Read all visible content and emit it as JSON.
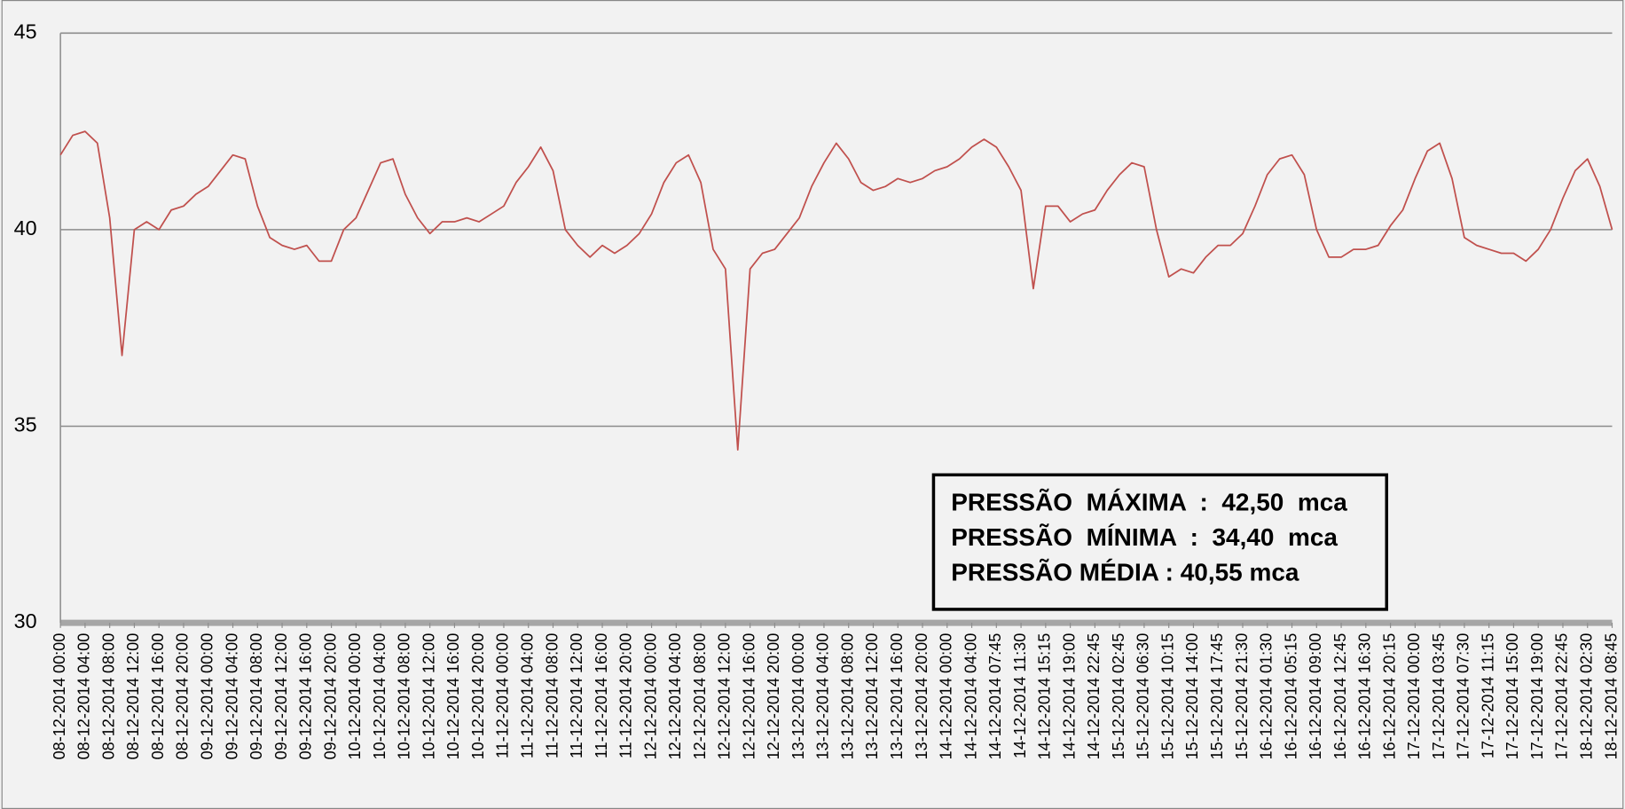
{
  "chart_data": {
    "type": "line",
    "categories": [
      "08-12-2014 00:00",
      null,
      "08-12-2014 04:00",
      null,
      "08-12-2014 08:00",
      null,
      "08-12-2014 12:00",
      null,
      "08-12-2014 16:00",
      null,
      "08-12-2014 20:00",
      null,
      "09-12-2014 00:00",
      null,
      "09-12-2014 04:00",
      null,
      "09-12-2014 08:00",
      null,
      "09-12-2014 12:00",
      null,
      "09-12-2014 16:00",
      null,
      "09-12-2014 20:00",
      null,
      "10-12-2014 00:00",
      null,
      "10-12-2014 04:00",
      null,
      "10-12-2014 08:00",
      null,
      "10-12-2014 12:00",
      null,
      "10-12-2014 16:00",
      null,
      "10-12-2014 20:00",
      null,
      "11-12-2014 00:00",
      null,
      "11-12-2014 04:00",
      null,
      "11-12-2014 08:00",
      null,
      "11-12-2014 12:00",
      null,
      "11-12-2014 16:00",
      null,
      "11-12-2014 20:00",
      null,
      "12-12-2014 00:00",
      null,
      "12-12-2014 04:00",
      null,
      "12-12-2014 08:00",
      null,
      "12-12-2014 12:00",
      null,
      "12-12-2014 16:00",
      null,
      "12-12-2014 20:00",
      null,
      "13-12-2014 00:00",
      null,
      "13-12-2014 04:00",
      null,
      "13-12-2014 08:00",
      null,
      "13-12-2014 12:00",
      null,
      "13-12-2014 16:00",
      null,
      "13-12-2014 20:00",
      null,
      "14-12-2014 00:00",
      null,
      "14-12-2014 04:00",
      null,
      "14-12-2014 07:45",
      null,
      "14-12-2014 11:30",
      null,
      "14-12-2014 15:15",
      null,
      "14-12-2014 19:00",
      null,
      "14-12-2014 22:45",
      null,
      "15-12-2014 02:45",
      null,
      "15-12-2014 06:30",
      null,
      "15-12-2014 10:15",
      null,
      "15-12-2014 14:00",
      null,
      "15-12-2014 17:45",
      null,
      "15-12-2014 21:30",
      null,
      "16-12-2014 01:30",
      null,
      "16-12-2014 05:15",
      null,
      "16-12-2014 09:00",
      null,
      "16-12-2014 12:45",
      null,
      "16-12-2014 16:30",
      null,
      "16-12-2014 20:15",
      null,
      "17-12-2014 00:00",
      null,
      "17-12-2014 03:45",
      null,
      "17-12-2014 07:30",
      null,
      "17-12-2014 11:15",
      null,
      "17-12-2014 15:00",
      null,
      "17-12-2014 19:00",
      null,
      "17-12-2014 22:45",
      null,
      "18-12-2014 02:30",
      null,
      "18-12-2014 08:45"
    ],
    "series": [
      {
        "color": "#c0504d",
        "values": [
          41.9,
          42.4,
          42.5,
          42.2,
          40.3,
          36.8,
          40.0,
          40.2,
          40.0,
          40.5,
          40.6,
          40.9,
          41.1,
          41.5,
          41.9,
          41.8,
          40.6,
          39.8,
          39.6,
          39.5,
          39.6,
          39.2,
          39.2,
          40.0,
          40.3,
          41.0,
          41.7,
          41.8,
          40.9,
          40.3,
          39.9,
          40.2,
          40.2,
          40.3,
          40.2,
          40.4,
          40.6,
          41.2,
          41.6,
          42.1,
          41.5,
          40.0,
          39.6,
          39.3,
          39.6,
          39.4,
          39.6,
          39.9,
          40.4,
          41.2,
          41.7,
          41.9,
          41.2,
          39.5,
          39.0,
          34.4,
          39.0,
          39.4,
          39.5,
          39.9,
          40.3,
          41.1,
          41.7,
          42.2,
          41.8,
          41.2,
          41.0,
          41.1,
          41.3,
          41.2,
          41.3,
          41.5,
          41.6,
          41.8,
          42.1,
          42.3,
          42.1,
          41.6,
          41.0,
          38.5,
          40.6,
          40.6,
          40.2,
          40.4,
          40.5,
          41.0,
          41.4,
          41.7,
          41.6,
          40.0,
          38.8,
          39.0,
          38.9,
          39.3,
          39.6,
          39.6,
          39.9,
          40.6,
          41.4,
          41.8,
          41.9,
          41.4,
          40.0,
          39.3,
          39.3,
          39.5,
          39.5,
          39.6,
          40.1,
          40.5,
          41.3,
          42.0,
          42.2,
          41.3,
          39.8,
          39.6,
          39.5,
          39.4,
          39.4,
          39.2,
          39.5,
          40.0,
          40.8,
          41.5,
          41.8,
          41.1,
          40.0
        ]
      }
    ],
    "ylim": [
      30,
      45
    ],
    "yticks": [
      30,
      35,
      40,
      45
    ],
    "grid": true,
    "annotations": [
      "PRESSÃO  MÁXIMA  :  42,50  mca",
      "PRESSÃO  MÍNIMA  :  34,40  mca",
      "PRESSÃO MÉDIA : 40,55 mca"
    ]
  }
}
